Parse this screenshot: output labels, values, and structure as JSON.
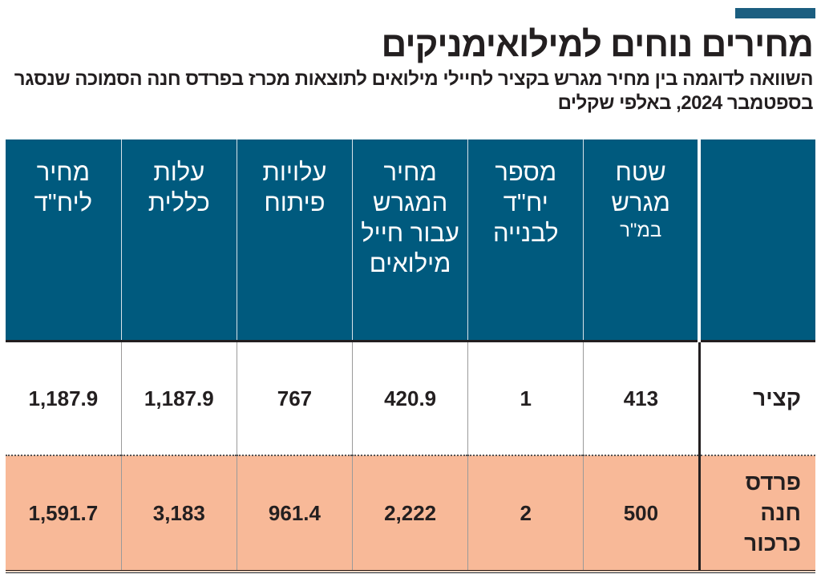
{
  "colors": {
    "header": "#005a7e",
    "accent_bar": "#1b5e80",
    "highlight_row": "#f8b998"
  },
  "title": "מחירים נוחים למילואימניקים",
  "subtitle": "השוואה לדוגמה בין מחיר מגרש בקציר לחיילי מילואים לתוצאות מכרז בפרדס חנה הסמוכה שנסגר בספטמבר 2024, באלפי שקלים",
  "chart_data": {
    "type": "table",
    "columns": [
      {
        "label": "שטח מגרש",
        "unit": "במ\"ר"
      },
      {
        "label": "מספר יח\"ד לבנייה"
      },
      {
        "label": "מחיר המגרש עבור חייל מילואים"
      },
      {
        "label": "עלויות פיתוח"
      },
      {
        "label": "עלות כללית"
      },
      {
        "label": "מחיר ליח\"ד"
      }
    ],
    "rows": [
      {
        "label": "קציר",
        "values": [
          "413",
          "1",
          "420.9",
          "767",
          "1,187.9",
          "1,187.9"
        ]
      },
      {
        "label": "פרדס חנה כרכור",
        "values": [
          "500",
          "2",
          "2,222",
          "961.4",
          "3,183",
          "1,591.7"
        ]
      }
    ]
  }
}
